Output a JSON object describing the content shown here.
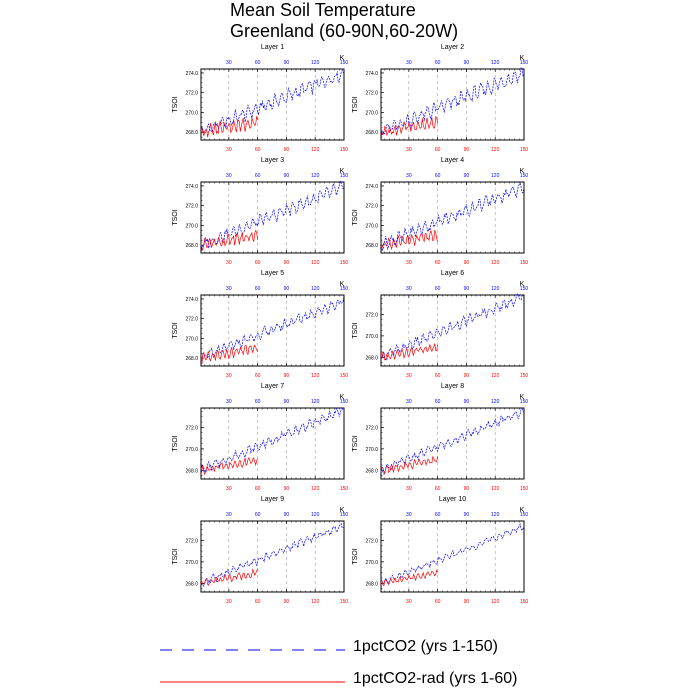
{
  "title": {
    "line1": "Mean Soil Temperature",
    "line2": "Greenland (60-90N,60-20W)"
  },
  "colors": {
    "series_a": "#0000ff",
    "series_b": "#ff0000",
    "grid": "#a0a0a0",
    "axis": "#000000"
  },
  "legend": {
    "items": [
      {
        "label": "1pctCO2 (yrs 1-150)",
        "color": "#0000ff",
        "style": "dashed"
      },
      {
        "label": "1pctCO2-rad (yrs 1-60)",
        "color": "#ff0000",
        "style": "solid"
      }
    ]
  },
  "chart_data": {
    "type": "line",
    "layout": "5 rows x 2 columns of panels",
    "ylabel": "TSOI",
    "units": "K",
    "x_ticks_top": [
      30,
      60,
      90,
      120,
      150
    ],
    "x_ticks_bottom": [
      30,
      60,
      90,
      120,
      150
    ],
    "xlim": [
      1,
      150
    ],
    "grid": "dashed vertical lines at x = 30, 60, 90, 120",
    "panels": [
      {
        "title": "Layer 1",
        "ylim": [
          267.2,
          274.4
        ],
        "yticks": [
          "268.0",
          "270.0",
          "272.0",
          "274.0"
        ],
        "series_a": {
          "start": 268.0,
          "end": 274.0,
          "amplitude": 0.9
        },
        "series_b": {
          "start": 268.0,
          "end": 269.0,
          "amplitude": 0.8
        }
      },
      {
        "title": "Layer 2",
        "ylim": [
          267.2,
          274.4
        ],
        "yticks": [
          "268.0",
          "270.0",
          "272.0",
          "274.0"
        ],
        "series_a": {
          "start": 268.0,
          "end": 274.0,
          "amplitude": 0.9
        },
        "series_b": {
          "start": 268.0,
          "end": 269.0,
          "amplitude": 0.8
        }
      },
      {
        "title": "Layer 3",
        "ylim": [
          267.2,
          274.4
        ],
        "yticks": [
          "268.0",
          "270.0",
          "272.0",
          "274.0"
        ],
        "series_a": {
          "start": 268.0,
          "end": 273.9,
          "amplitude": 0.8
        },
        "series_b": {
          "start": 268.0,
          "end": 269.0,
          "amplitude": 0.7
        }
      },
      {
        "title": "Layer 4",
        "ylim": [
          267.2,
          274.4
        ],
        "yticks": [
          "268.0",
          "270.0",
          "272.0",
          "274.0"
        ],
        "series_a": {
          "start": 268.0,
          "end": 273.9,
          "amplitude": 0.8
        },
        "series_b": {
          "start": 268.0,
          "end": 269.0,
          "amplitude": 0.7
        }
      },
      {
        "title": "Layer 5",
        "ylim": [
          267.2,
          274.4
        ],
        "yticks": [
          "268.0",
          "270.0",
          "272.0",
          "274.0"
        ],
        "series_a": {
          "start": 268.0,
          "end": 273.8,
          "amplitude": 0.7
        },
        "series_b": {
          "start": 268.0,
          "end": 269.0,
          "amplitude": 0.6
        }
      },
      {
        "title": "Layer 6",
        "ylim": [
          267.2,
          273.8
        ],
        "yticks": [
          "268.0",
          "270.0",
          "272.0"
        ],
        "series_a": {
          "start": 268.0,
          "end": 273.7,
          "amplitude": 0.6
        },
        "series_b": {
          "start": 268.0,
          "end": 269.0,
          "amplitude": 0.5
        }
      },
      {
        "title": "Layer 7",
        "ylim": [
          267.2,
          273.8
        ],
        "yticks": [
          "268.0",
          "270.0",
          "272.0"
        ],
        "series_a": {
          "start": 268.0,
          "end": 273.6,
          "amplitude": 0.55
        },
        "series_b": {
          "start": 268.0,
          "end": 269.0,
          "amplitude": 0.5
        }
      },
      {
        "title": "Layer 8",
        "ylim": [
          267.2,
          273.8
        ],
        "yticks": [
          "268.0",
          "270.0",
          "272.0"
        ],
        "series_a": {
          "start": 268.0,
          "end": 273.5,
          "amplitude": 0.5
        },
        "series_b": {
          "start": 268.0,
          "end": 269.0,
          "amplitude": 0.45
        }
      },
      {
        "title": "Layer 9",
        "ylim": [
          267.2,
          273.8
        ],
        "yticks": [
          "268.0",
          "270.0",
          "272.0"
        ],
        "series_a": {
          "start": 268.0,
          "end": 273.4,
          "amplitude": 0.45
        },
        "series_b": {
          "start": 268.0,
          "end": 269.0,
          "amplitude": 0.4
        }
      },
      {
        "title": "Layer 10",
        "ylim": [
          267.2,
          273.8
        ],
        "yticks": [
          "268.0",
          "270.0",
          "272.0"
        ],
        "series_a": {
          "start": 268.0,
          "end": 273.3,
          "amplitude": 0.4
        },
        "series_b": {
          "start": 268.0,
          "end": 269.0,
          "amplitude": 0.35
        }
      }
    ]
  }
}
